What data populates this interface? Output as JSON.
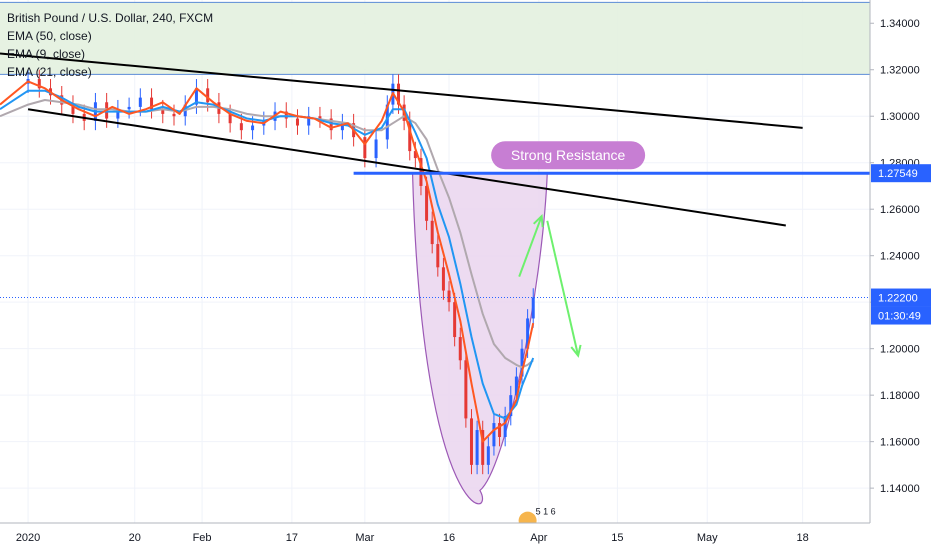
{
  "title": "British Pound / U.S. Dollar, 240, FXCM",
  "indicators": [
    "EMA (50, close)",
    "EMA (9, close)",
    "EMA (21, close)"
  ],
  "colors": {
    "ema9": "#ff5722",
    "ema21": "#2196f3",
    "ema50": "#b0a8ae",
    "candle_up": "#2962ff",
    "candle_down": "#e53935",
    "supply_zone": "#e3f1df",
    "callout": "#c77ed3",
    "resistance_line": "#2962ff",
    "cup_fill": "#ead5ee",
    "cup_stroke": "#9c59b6",
    "arrows": "#6ef06e",
    "price_tag": "#2962ff"
  },
  "annotations": {
    "callout": "Strong Resistance"
  },
  "price_tags": {
    "resistance": "1.27549",
    "current": "1.22200",
    "countdown": "01:30:49"
  },
  "watermark": "5 1 6",
  "chart_data": {
    "type": "line",
    "title": "British Pound / U.S. Dollar, 240, FXCM",
    "x_tick_labels": [
      {
        "label": "2020",
        "day": 0
      },
      {
        "label": "20",
        "day": 19
      },
      {
        "label": "Feb",
        "day": 31
      },
      {
        "label": "17",
        "day": 47
      },
      {
        "label": "Mar",
        "day": 60
      },
      {
        "label": "16",
        "day": 75
      },
      {
        "label": "Apr",
        "day": 91
      },
      {
        "label": "15",
        "day": 105
      },
      {
        "label": "May",
        "day": 121
      },
      {
        "label": "18",
        "day": 138
      }
    ],
    "y_ticks": [
      1.14,
      1.16,
      1.18,
      1.2,
      1.22,
      1.24,
      1.26,
      1.28,
      1.3,
      1.32,
      1.34
    ],
    "ylim": [
      1.125,
      1.35
    ],
    "xlim_days": [
      -5,
      150
    ],
    "x_unit": "days since 2020-01-01",
    "series": [
      {
        "name": "EMA (9, close)",
        "x": [
          -5,
          0,
          3,
          6,
          9,
          12,
          15,
          18,
          21,
          24,
          27,
          30,
          33,
          36,
          39,
          42,
          45,
          48,
          51,
          54,
          57,
          60,
          63,
          65,
          67,
          69,
          71,
          73,
          75,
          77,
          79,
          81,
          83,
          85,
          87,
          88,
          89,
          90
        ],
        "y": [
          1.305,
          1.315,
          1.312,
          1.307,
          1.303,
          1.3,
          1.304,
          1.301,
          1.303,
          1.306,
          1.301,
          1.312,
          1.306,
          1.301,
          1.298,
          1.297,
          1.302,
          1.3,
          1.299,
          1.295,
          1.297,
          1.288,
          1.298,
          1.31,
          1.302,
          1.286,
          1.272,
          1.25,
          1.232,
          1.212,
          1.185,
          1.16,
          1.165,
          1.168,
          1.178,
          1.19,
          1.2,
          1.211
        ]
      },
      {
        "name": "EMA (21, close)",
        "x": [
          -5,
          0,
          3,
          6,
          9,
          12,
          15,
          18,
          21,
          24,
          27,
          30,
          33,
          36,
          39,
          42,
          45,
          48,
          51,
          54,
          57,
          60,
          63,
          65,
          67,
          69,
          71,
          73,
          75,
          77,
          79,
          81,
          83,
          85,
          87,
          88,
          89,
          90
        ],
        "y": [
          1.303,
          1.311,
          1.311,
          1.308,
          1.304,
          1.302,
          1.302,
          1.302,
          1.302,
          1.304,
          1.302,
          1.306,
          1.305,
          1.302,
          1.299,
          1.298,
          1.3,
          1.3,
          1.299,
          1.297,
          1.296,
          1.292,
          1.295,
          1.303,
          1.303,
          1.293,
          1.282,
          1.262,
          1.248,
          1.228,
          1.205,
          1.185,
          1.172,
          1.17,
          1.176,
          1.184,
          1.19,
          1.196
        ]
      },
      {
        "name": "EMA (50, close)",
        "x": [
          -5,
          0,
          3,
          6,
          9,
          12,
          15,
          18,
          21,
          24,
          27,
          30,
          33,
          36,
          39,
          42,
          45,
          48,
          51,
          54,
          57,
          60,
          63,
          65,
          67,
          69,
          71,
          73,
          75,
          77,
          79,
          81,
          83,
          85,
          87,
          88,
          89,
          90
        ],
        "y": [
          1.3,
          1.305,
          1.307,
          1.306,
          1.305,
          1.303,
          1.303,
          1.302,
          1.302,
          1.303,
          1.302,
          1.304,
          1.304,
          1.303,
          1.301,
          1.3,
          1.3,
          1.3,
          1.299,
          1.298,
          1.297,
          1.294,
          1.294,
          1.297,
          1.3,
          1.297,
          1.29,
          1.277,
          1.265,
          1.25,
          1.232,
          1.215,
          1.202,
          1.196,
          1.193,
          1.192,
          1.193,
          1.195
        ]
      }
    ],
    "candles_close": {
      "x": [
        0,
        2,
        4,
        6,
        8,
        10,
        12,
        14,
        16,
        18,
        20,
        22,
        24,
        26,
        28,
        30,
        32,
        34,
        36,
        38,
        40,
        42,
        44,
        46,
        48,
        50,
        52,
        54,
        56,
        58,
        60,
        62,
        64,
        65,
        66,
        67,
        68,
        69,
        70,
        71,
        72,
        73,
        74,
        75,
        76,
        77,
        78,
        79,
        80,
        81,
        82,
        83,
        84,
        85,
        86,
        87,
        88,
        89,
        90
      ],
      "y": [
        1.316,
        1.312,
        1.309,
        1.305,
        1.301,
        1.298,
        1.306,
        1.299,
        1.303,
        1.304,
        1.308,
        1.303,
        1.301,
        1.3,
        1.305,
        1.312,
        1.306,
        1.301,
        1.297,
        1.294,
        1.296,
        1.298,
        1.302,
        1.299,
        1.296,
        1.3,
        1.299,
        1.294,
        1.297,
        1.291,
        1.282,
        1.29,
        1.305,
        1.314,
        1.305,
        1.298,
        1.285,
        1.282,
        1.27,
        1.255,
        1.245,
        1.235,
        1.225,
        1.22,
        1.205,
        1.195,
        1.17,
        1.15,
        1.165,
        1.15,
        1.158,
        1.168,
        1.162,
        1.171,
        1.18,
        1.188,
        1.2,
        1.213,
        1.222
      ]
    },
    "trendlines": [
      {
        "name": "upper",
        "from": [
          -5,
          1.327
        ],
        "to": [
          138,
          1.295
        ]
      },
      {
        "name": "lower",
        "from": [
          0,
          1.303
        ],
        "to": [
          135,
          1.253
        ]
      }
    ],
    "resistance_level": 1.27549,
    "current_price": 1.222,
    "supply_zone": [
      1.318,
      1.349
    ]
  }
}
